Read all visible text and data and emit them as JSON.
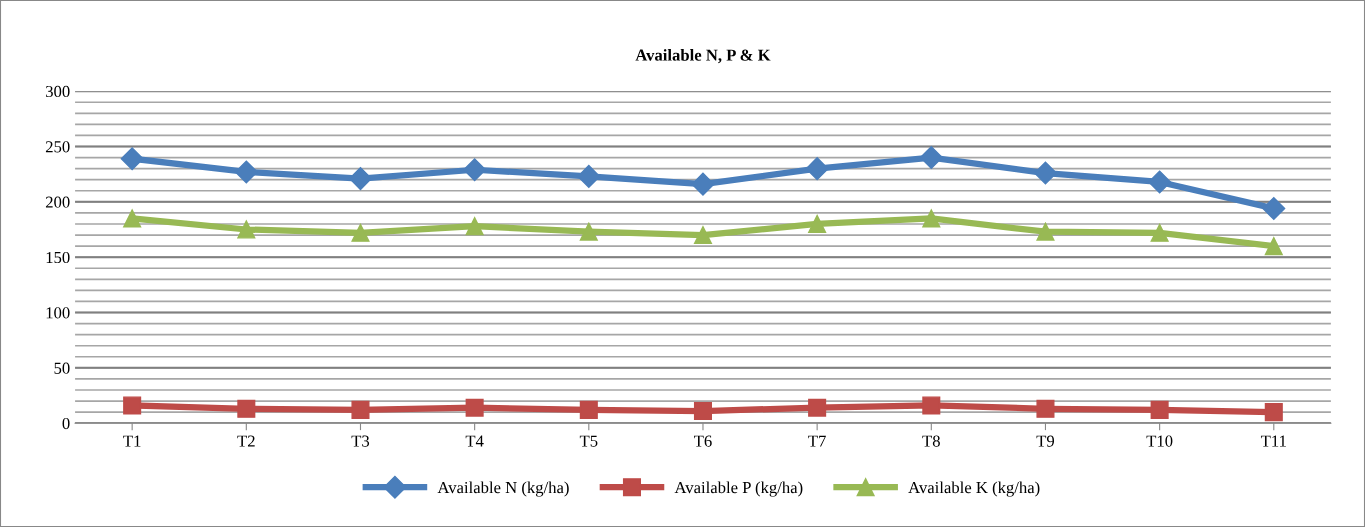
{
  "chart_data": {
    "type": "line",
    "title": "Available N, P & K",
    "categories": [
      "T1",
      "T2",
      "T3",
      "T4",
      "T5",
      "T6",
      "T7",
      "T8",
      "T9",
      "T10",
      "T11"
    ],
    "series": [
      {
        "name": "Available N (kg/ha)",
        "color": "#4a7ebb",
        "marker": "diamond",
        "values": [
          239,
          227,
          221,
          229,
          223,
          216,
          230,
          240,
          226,
          218,
          194
        ]
      },
      {
        "name": "Available P (kg/ha)",
        "color": "#be4b48",
        "marker": "square",
        "values": [
          16,
          13,
          12,
          14,
          12,
          11,
          14,
          16,
          13,
          12,
          10
        ]
      },
      {
        "name": "Available K (kg/ha)",
        "color": "#98b954",
        "marker": "triangle",
        "values": [
          185,
          175,
          172,
          178,
          173,
          170,
          180,
          185,
          173,
          172,
          160
        ]
      }
    ],
    "ylim": [
      0,
      300
    ],
    "yticks": [
      0,
      {
        "value": 10,
        "label": null
      },
      {
        "value": 20,
        "label": null
      },
      {
        "value": 30,
        "label": null
      },
      {
        "value": 40,
        "label": null
      },
      50,
      {
        "value": 60,
        "label": null
      },
      {
        "value": 70,
        "label": null
      },
      {
        "value": 80,
        "label": null
      },
      {
        "value": 90,
        "label": null
      },
      100,
      {
        "value": 110,
        "label": null
      },
      {
        "value": 120,
        "label": null
      },
      {
        "value": 130,
        "label": null
      },
      {
        "value": 140,
        "label": null
      },
      150,
      {
        "value": 160,
        "label": null
      },
      {
        "value": 170,
        "label": null
      },
      {
        "value": 180,
        "label": null
      },
      {
        "value": 190,
        "label": null
      },
      200,
      {
        "value": 210,
        "label": null
      },
      {
        "value": 220,
        "label": null
      },
      {
        "value": 230,
        "label": null
      },
      {
        "value": 240,
        "label": null
      },
      250,
      {
        "value": 260,
        "label": null
      },
      {
        "value": 270,
        "label": null
      },
      {
        "value": 280,
        "label": null
      },
      {
        "value": 290,
        "label": null
      },
      300
    ],
    "grid": "y",
    "legend": "bottom",
    "line_style": "solid"
  }
}
